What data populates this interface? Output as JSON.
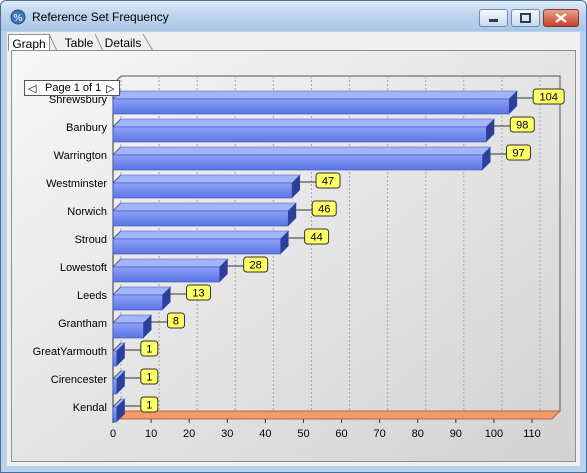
{
  "window": {
    "title": "Reference Set Frequency"
  },
  "tabs": [
    {
      "label": "Graph"
    },
    {
      "label": "Table"
    },
    {
      "label": "Details"
    }
  ],
  "pager": {
    "label": "Page 1 of 1"
  },
  "chart_data": {
    "type": "bar",
    "orientation": "horizontal",
    "categories": [
      "Shrewsbury",
      "Banbury",
      "Warrington",
      "Westminster",
      "Norwich",
      "Stroud",
      "Lowestoft",
      "Leeds",
      "Grantham",
      "GreatYarmouth",
      "Cirencester",
      "Kendal"
    ],
    "values": [
      104,
      98,
      97,
      47,
      46,
      44,
      28,
      13,
      8,
      1,
      1,
      1
    ],
    "data_labels": [
      "104",
      "98",
      "97",
      "47",
      "46",
      "44",
      "28",
      "13",
      "8",
      "1",
      "1",
      "1"
    ],
    "xlim": [
      0,
      110
    ],
    "xticks": [
      "0",
      "10",
      "20",
      "30",
      "40",
      "50",
      "60",
      "70",
      "80",
      "90",
      "100",
      "110"
    ],
    "grid": true,
    "colors": {
      "bar": "#6f87f0",
      "bar_top": "#a3b4f7",
      "bar_side": "#2c3f9a",
      "label_bg": "#ffff66",
      "floor": "#f39a6a"
    }
  }
}
